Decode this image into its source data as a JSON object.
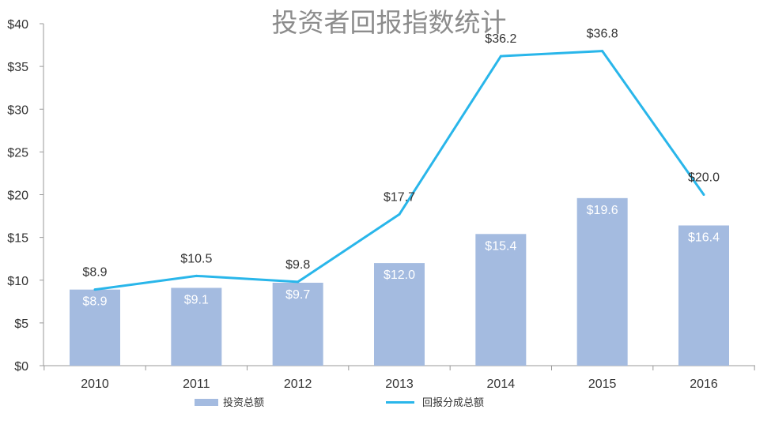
{
  "chart_data": {
    "type": "bar",
    "title": "投资者回报指数统计",
    "categories": [
      "2010",
      "2011",
      "2012",
      "2013",
      "2014",
      "2015",
      "2016"
    ],
    "ylim": [
      0,
      40
    ],
    "yticks": [
      "$0",
      "$5",
      "$10",
      "$15",
      "$20",
      "$25",
      "$30",
      "$35",
      "$40"
    ],
    "ytick_values": [
      0,
      5,
      10,
      15,
      20,
      25,
      30,
      35,
      40
    ],
    "grid": false,
    "legend_position": "bottom",
    "series": [
      {
        "name": "投资总额",
        "type": "bar",
        "color": "#a4bbe0",
        "values": [
          8.9,
          9.1,
          9.7,
          12.0,
          15.4,
          19.6,
          16.4
        ],
        "labels": [
          "$8.9",
          "$9.1",
          "$9.7",
          "$12.0",
          "$15.4",
          "$19.6",
          "$16.4"
        ]
      },
      {
        "name": "回报分成总额",
        "type": "line",
        "color": "#29b6ea",
        "values": [
          8.9,
          10.5,
          9.8,
          17.7,
          36.2,
          36.8,
          20.0
        ],
        "labels": [
          "$8.9",
          "$10.5",
          "$9.8",
          "$17.7",
          "$36.2",
          "$36.8",
          "$20.0"
        ]
      }
    ]
  }
}
